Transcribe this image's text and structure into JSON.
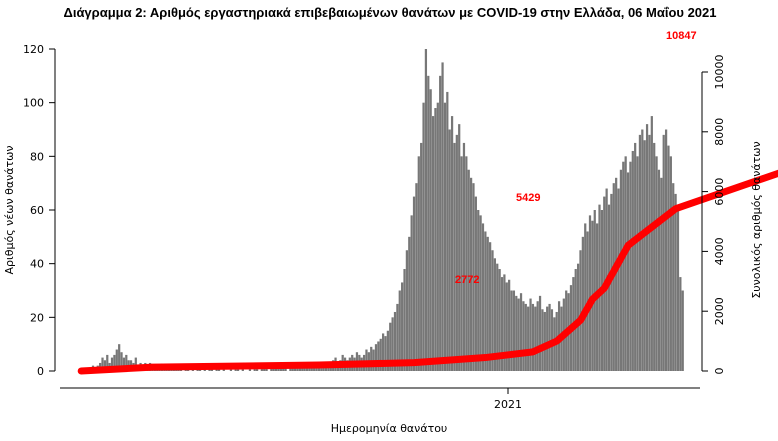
{
  "chart_data": {
    "type": "bar",
    "title": "Διάγραμμα 2: Αριθμός εργαστηριακά επιβεβαιωμένων θανάτων με COVID-19 στην Ελλάδα, 06 Μαΐου 2021",
    "xlabel": "Ημερομηνία θανάτου",
    "ylabel": "Αριθμός νέων θανάτων",
    "y2label": "Συνολικός αριθμός θανάτων",
    "x_ticks": [
      "2021"
    ],
    "ylim": [
      0,
      125
    ],
    "yticks": [
      0,
      20,
      40,
      60,
      80,
      100,
      120
    ],
    "y2lim": [
      0,
      10500
    ],
    "y2ticks": [
      0,
      2000,
      4000,
      6000,
      8000,
      10000
    ],
    "grid": false,
    "bar_color": "#777777",
    "line_color": "#ff0000",
    "series": [
      {
        "name": "Αριθμός νέων θανάτων",
        "type": "bar",
        "daily_values_by_week": [
          [
            0,
            1,
            0,
            1,
            0,
            2,
            1
          ],
          [
            2,
            3,
            5,
            4,
            6,
            3,
            5
          ],
          [
            6,
            8,
            10,
            7,
            5,
            6,
            4
          ],
          [
            4,
            3,
            5,
            2,
            3,
            2,
            3
          ],
          [
            2,
            3,
            1,
            2,
            2,
            1,
            2
          ],
          [
            1,
            2,
            1,
            1,
            1,
            2,
            1
          ],
          [
            1,
            0,
            1,
            1,
            0,
            1,
            0
          ],
          [
            1,
            1,
            0,
            1,
            0,
            1,
            1
          ],
          [
            0,
            1,
            1,
            0,
            1,
            0,
            0
          ],
          [
            1,
            0,
            1,
            1,
            0,
            1,
            0
          ],
          [
            0,
            1,
            0,
            1,
            1,
            0,
            1
          ],
          [
            1,
            1,
            0,
            1,
            2,
            1,
            1
          ],
          [
            1,
            2,
            1,
            0,
            1,
            2,
            1
          ],
          [
            2,
            1,
            2,
            1,
            2,
            1,
            2
          ],
          [
            2,
            3,
            2,
            1,
            2,
            3,
            2
          ],
          [
            3,
            4,
            5,
            3,
            4,
            6,
            5
          ],
          [
            4,
            5,
            6,
            5,
            7,
            6,
            5
          ],
          [
            6,
            8,
            7,
            9,
            8,
            10,
            11
          ],
          [
            12,
            14,
            13,
            15,
            18,
            20,
            22
          ],
          [
            25,
            30,
            33,
            38,
            45,
            50,
            58
          ],
          [
            65,
            70,
            80,
            85,
            100,
            120,
            110
          ],
          [
            105,
            95,
            98,
            100,
            110,
            115,
            100
          ],
          [
            104,
            90,
            95,
            85,
            88,
            92,
            80
          ],
          [
            85,
            80,
            75,
            72,
            70,
            65,
            60
          ],
          [
            58,
            55,
            52,
            50,
            48,
            45,
            42
          ],
          [
            40,
            38,
            35,
            36,
            33,
            34,
            30
          ],
          [
            30,
            28,
            27,
            29,
            26,
            25,
            24
          ],
          [
            27,
            25,
            24,
            26,
            28,
            23,
            22
          ],
          [
            24,
            25,
            23,
            20,
            22,
            26,
            24
          ],
          [
            27,
            30,
            29,
            32,
            35,
            38,
            40
          ],
          [
            45,
            50,
            55,
            52,
            58,
            56,
            60
          ],
          [
            55,
            62,
            60,
            65,
            68,
            62,
            66
          ],
          [
            70,
            72,
            68,
            75,
            78,
            80,
            74
          ],
          [
            78,
            82,
            85,
            80,
            88,
            90,
            86
          ],
          [
            92,
            88,
            95,
            85,
            80,
            75,
            72
          ],
          [
            88,
            90,
            84,
            80,
            70,
            66,
            60
          ],
          [
            35,
            30
          ]
        ]
      },
      {
        "name": "Συνολικός αριθμός θανάτων",
        "type": "line",
        "axis": "right",
        "x_day": [
          0,
          30,
          60,
          100,
          140,
          170,
          190,
          200,
          210,
          215,
          220,
          230,
          250,
          300,
          310,
          340
        ],
        "values": [
          0,
          130,
          160,
          200,
          280,
          450,
          640,
          1000,
          1700,
          2400,
          2772,
          4200,
          5429,
          6800,
          7200,
          10847
        ]
      }
    ],
    "annotations": [
      "10847",
      "5429",
      "2772"
    ]
  }
}
